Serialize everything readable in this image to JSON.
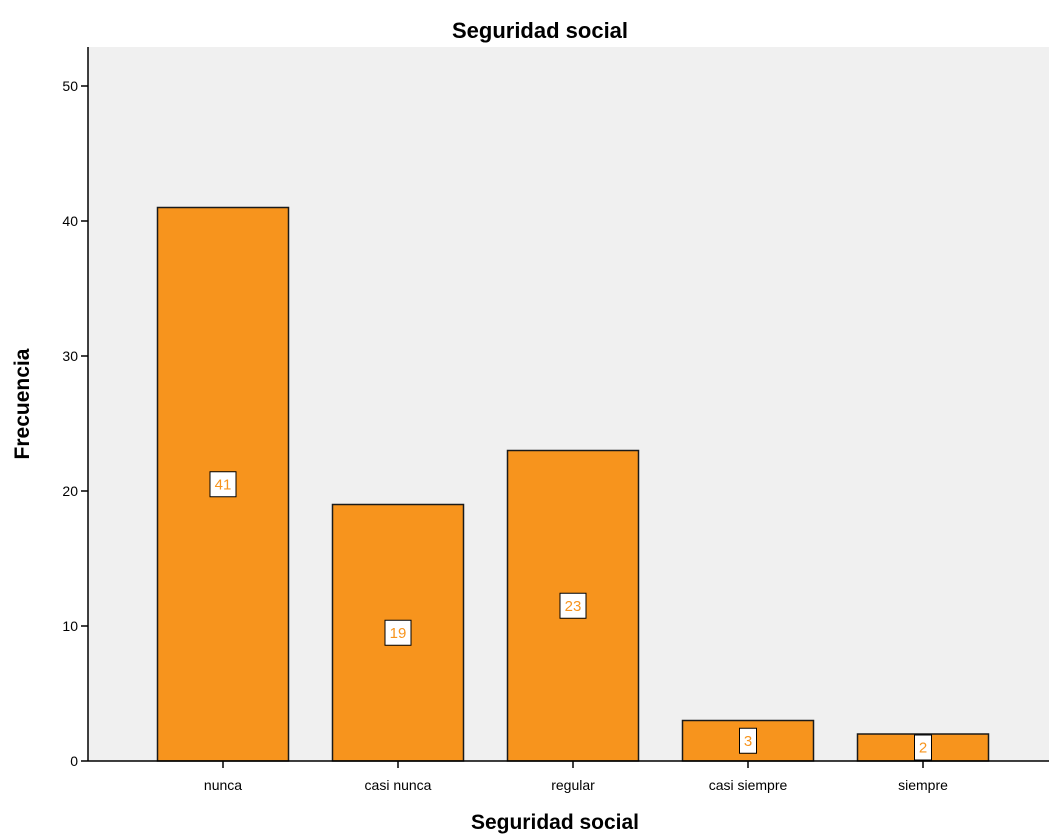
{
  "chart_data": {
    "type": "bar",
    "title": "Seguridad social",
    "xlabel": "Seguridad social",
    "ylabel": "Frecuencia",
    "categories": [
      "nunca",
      "casi nunca",
      "regular",
      "casi siempre",
      "siempre"
    ],
    "values": [
      41,
      19,
      23,
      3,
      2
    ],
    "data_labels": [
      "41",
      "19",
      "23",
      "3",
      "2"
    ],
    "ylim": [
      0,
      52
    ],
    "yticks": [
      0,
      10,
      20,
      30,
      40,
      50
    ],
    "ytick_labels": [
      "0",
      "10",
      "20",
      "30",
      "40",
      "50"
    ],
    "grid": false,
    "legend": "none"
  },
  "colors": {
    "bar_fill": "#f7941d",
    "bar_stroke": "#1a1a1a",
    "plot_background": "#f0f0f0",
    "label_text": "#f7941d",
    "label_box_fill": "#ffffff",
    "label_box_stroke": "#000000",
    "axis": "#000000"
  }
}
